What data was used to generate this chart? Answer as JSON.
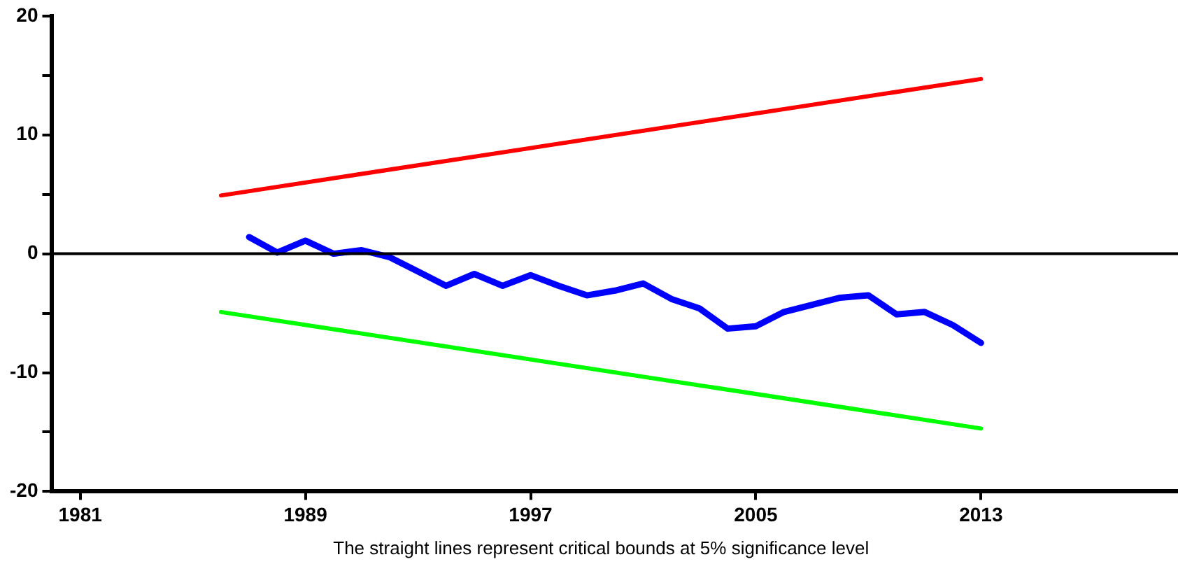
{
  "chart_data": {
    "type": "line",
    "annotations": [
      "The straight lines represent critical bounds at 5% significance level"
    ],
    "xlim": [
      1980,
      2020
    ],
    "xticks": [
      1981,
      1989,
      1997,
      2005,
      2013
    ],
    "ylim": [
      -20,
      20
    ],
    "yticks": [
      -20,
      {
        "value": -15,
        "label": null
      },
      -10,
      {
        "value": -5,
        "label": null
      },
      0,
      {
        "value": 5,
        "label": null
      },
      10,
      {
        "value": 15,
        "label": null
      },
      20
    ],
    "grid": false,
    "legend": false,
    "marker": "none",
    "ref_lines": [
      {
        "axis": "y",
        "value": 0,
        "color": "#000000"
      }
    ],
    "series": [
      {
        "color": "#0000ff",
        "x": [
          1987,
          1988,
          1989,
          1990,
          1991,
          1992,
          1993,
          1994,
          1995,
          1996,
          1997,
          1998,
          1999,
          2000,
          2001,
          2002,
          2003,
          2004,
          2005,
          2006,
          2007,
          2008,
          2009,
          2010,
          2011,
          2012,
          2013
        ],
        "values": [
          1.4,
          0.1,
          1.1,
          0.0,
          0.3,
          -0.3,
          -1.5,
          -2.7,
          -1.7,
          -2.7,
          -1.8,
          -2.7,
          -3.5,
          -3.1,
          -2.5,
          -3.8,
          -4.6,
          -6.3,
          -6.1,
          -4.9,
          -4.3,
          -3.7,
          -3.5,
          -5.1,
          -4.9,
          -6.0,
          -7.5
        ]
      },
      {
        "color": "#ff0000",
        "x": [
          1986,
          2013
        ],
        "values": [
          4.9,
          14.7
        ]
      },
      {
        "color": "#00ff00",
        "x": [
          1986,
          2013
        ],
        "values": [
          -4.9,
          -14.7
        ]
      }
    ]
  }
}
